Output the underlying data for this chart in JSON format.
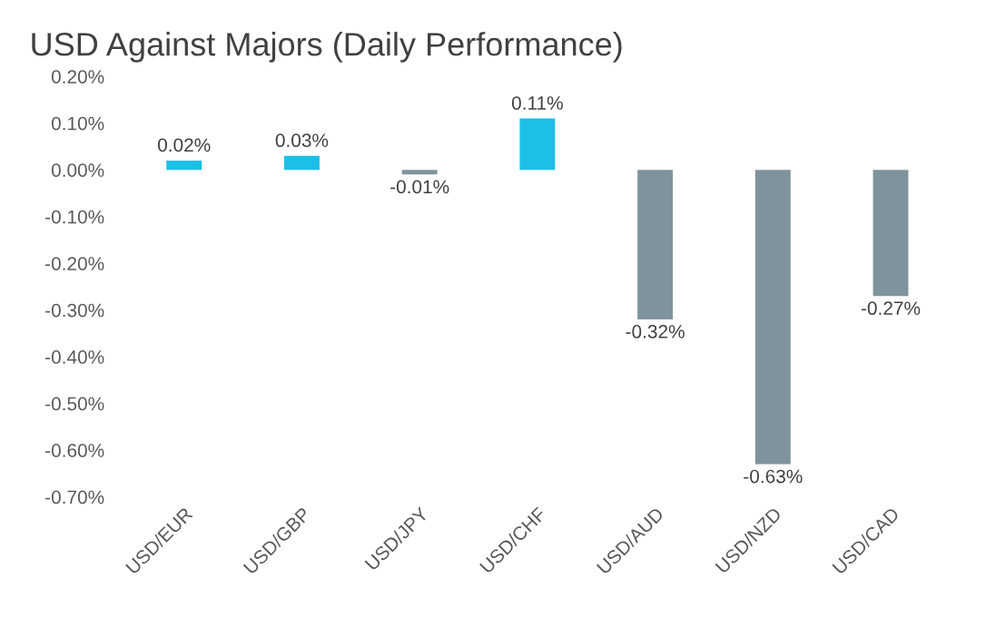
{
  "chart_data": {
    "type": "bar",
    "title": "USD Against Majors (Daily Performance)",
    "categories": [
      "USD/EUR",
      "USD/GBP",
      "USD/JPY",
      "USD/CHF",
      "USD/AUD",
      "USD/NZD",
      "USD/CAD"
    ],
    "values": [
      0.02,
      0.03,
      -0.01,
      0.11,
      -0.32,
      -0.63,
      -0.27
    ],
    "colors": [
      "#1ebfe6",
      "#1ebfe6",
      "#7f939c",
      "#1ebfe6",
      "#7f939c",
      "#7f939c",
      "#7f939c"
    ],
    "value_labels": [
      "0.02%",
      "0.03%",
      "-0.01%",
      "0.11%",
      "-0.32%",
      "-0.63%",
      "-0.27%"
    ],
    "ylim": [
      -0.7,
      0.2
    ],
    "yticks": [
      {
        "value": 0.2,
        "label": "0.20%"
      },
      {
        "value": 0.1,
        "label": "0.10%"
      },
      {
        "value": 0.0,
        "label": "0.00%"
      },
      {
        "value": -0.1,
        "label": "-0.10%"
      },
      {
        "value": -0.2,
        "label": "-0.20%"
      },
      {
        "value": -0.3,
        "label": "-0.30%"
      },
      {
        "value": -0.4,
        "label": "-0.40%"
      },
      {
        "value": -0.5,
        "label": "-0.50%"
      },
      {
        "value": -0.6,
        "label": "-0.60%"
      },
      {
        "value": -0.7,
        "label": "-0.70%"
      }
    ],
    "grid": false
  }
}
